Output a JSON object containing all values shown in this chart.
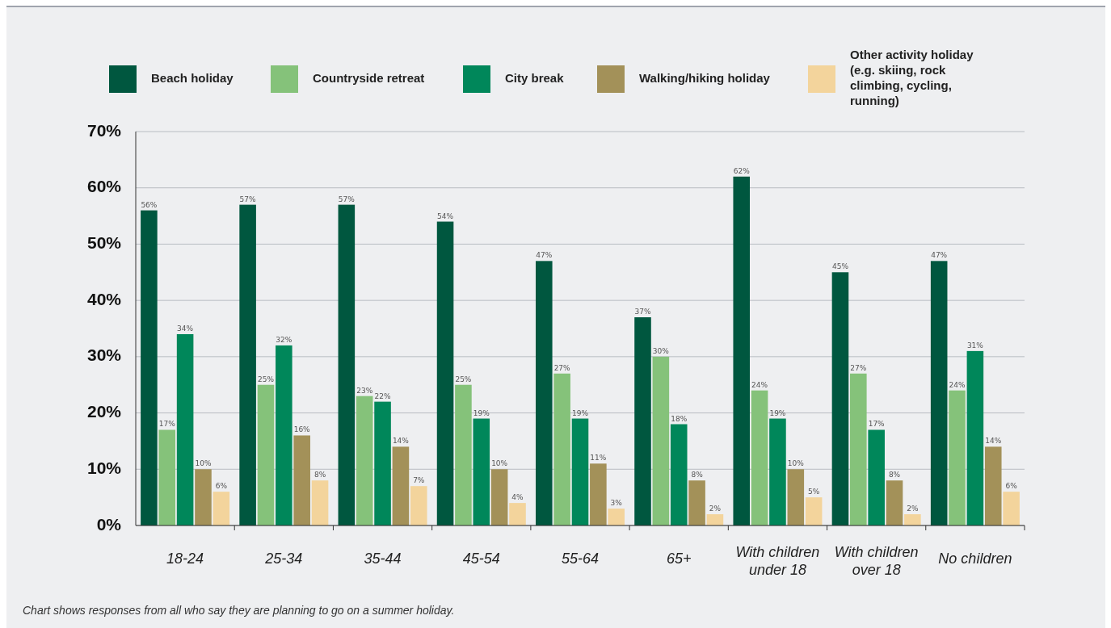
{
  "chart_data": {
    "type": "bar",
    "categories": [
      "18-24",
      "25-34",
      "35-44",
      "45-54",
      "55-64",
      "65+",
      "With children under 18",
      "With children over 18",
      "No children"
    ],
    "series": [
      {
        "name": "Beach holiday",
        "color": "#00573f",
        "values": [
          56,
          57,
          57,
          54,
          47,
          37,
          62,
          45,
          47
        ],
        "value_labels": [
          "56%",
          "57%",
          "57%",
          "54%",
          "47%",
          "37%",
          "62%",
          "45%",
          "47%"
        ]
      },
      {
        "name": "Countryside retreat",
        "color": "#85c27a",
        "values": [
          17,
          25,
          23,
          25,
          27,
          30,
          24,
          27,
          24
        ],
        "value_labels": [
          "17%",
          "25%",
          "23%",
          "25%",
          "27%",
          "30%",
          "24%",
          "27%",
          "24%"
        ]
      },
      {
        "name": "City break",
        "color": "#00875a",
        "values": [
          34,
          32,
          22,
          19,
          19,
          18,
          19,
          17,
          31
        ],
        "value_labels": [
          "34%",
          "32%",
          "22%",
          "19%",
          "19%",
          "18%",
          "19%",
          "17%",
          "31%"
        ]
      },
      {
        "name": "Walking/hiking holiday",
        "color": "#a39159",
        "values": [
          10,
          16,
          14,
          10,
          11,
          8,
          10,
          8,
          14
        ],
        "value_labels": [
          "10%",
          "16%",
          "14%",
          "10%",
          "11%",
          "8%",
          "10%",
          "8%",
          "14%"
        ]
      },
      {
        "name": "Other activity holiday (e.g. skiing, rock climbing, cycling, running)",
        "color": "#f3d49c",
        "values": [
          6,
          8,
          7,
          4,
          3,
          2,
          5,
          2,
          6
        ],
        "value_labels": [
          "6%",
          "8%",
          "7%",
          "4%",
          "3%",
          "2%",
          "5%",
          "2%",
          "6%"
        ]
      }
    ],
    "ylim": [
      0,
      70
    ],
    "yticks": [
      {
        "value": 0,
        "label": "0%"
      },
      {
        "value": 10,
        "label": "10%"
      },
      {
        "value": 20,
        "label": "20%"
      },
      {
        "value": 30,
        "label": "30%"
      },
      {
        "value": 40,
        "label": "40%"
      },
      {
        "value": 50,
        "label": "50%"
      },
      {
        "value": 60,
        "label": "60%"
      },
      {
        "value": 70,
        "label": "70%"
      }
    ],
    "grid": "y",
    "legend": "top",
    "annotations": [
      "Chart shows responses from all who say they are planning to go on a summer holiday."
    ]
  }
}
